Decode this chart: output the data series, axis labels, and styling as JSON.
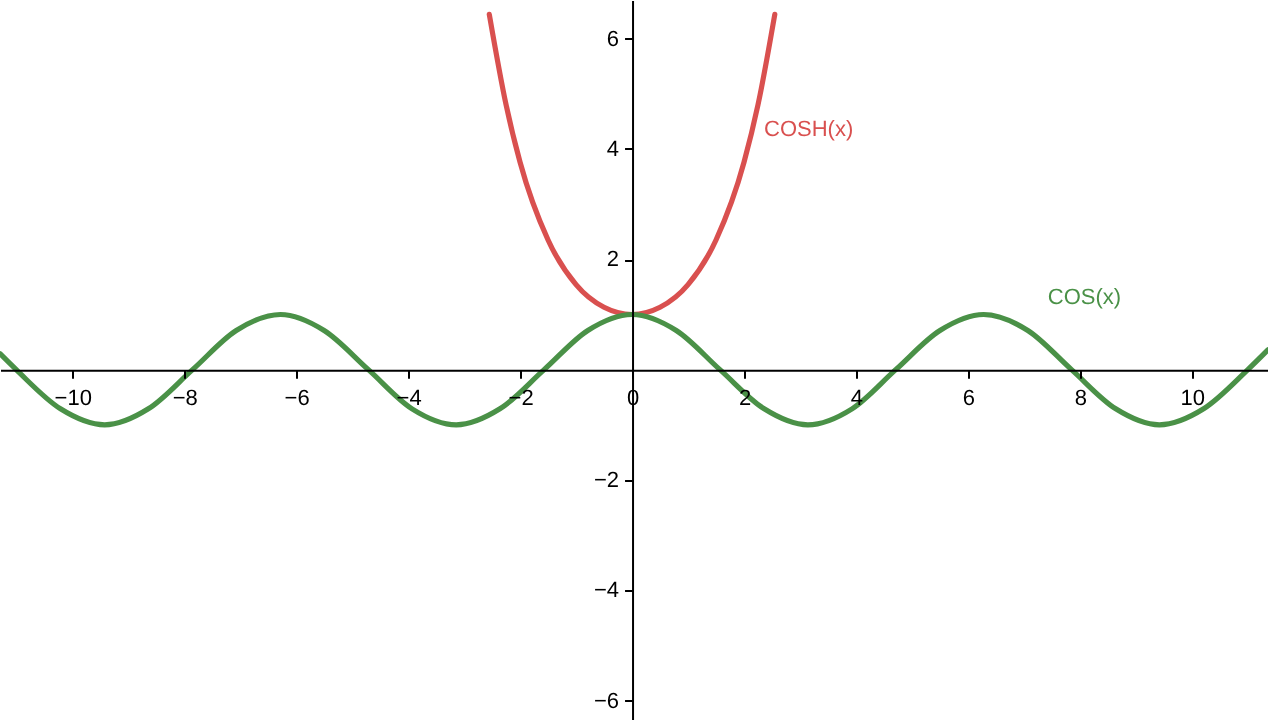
{
  "chart_data": {
    "type": "line",
    "xlim": [
      -11.29,
      11.36
    ],
    "ylim": [
      -6.35,
      6.7
    ],
    "xticks": [
      -10,
      -8,
      -6,
      -4,
      -2,
      0,
      2,
      4,
      6,
      8,
      10
    ],
    "yticks": [
      -6,
      -4,
      -2,
      2,
      4,
      6
    ],
    "series": [
      {
        "name": "COSH(x)",
        "color": "#d9504f",
        "x": [
          -2.55,
          -2.25,
          -2,
          -1.5,
          -1,
          -0.5,
          0,
          0.5,
          1,
          1.5,
          2,
          2.25,
          2.55
        ],
        "values": [
          6.44,
          4.8,
          3.76,
          2.35,
          1.54,
          1.13,
          1,
          1.13,
          1.54,
          2.35,
          3.76,
          4.8,
          6.44
        ]
      },
      {
        "name": "COS(x)",
        "color": "#4a9147",
        "x": [
          -11.29,
          -11.0,
          -10.21,
          -9.42,
          -8.64,
          -7.85,
          -7.07,
          -6.28,
          -5.5,
          -4.71,
          -3.93,
          -3.14,
          -2.36,
          -1.57,
          -0.79,
          0,
          0.79,
          1.57,
          2.36,
          3.14,
          3.93,
          4.71,
          5.5,
          6.28,
          7.07,
          7.85,
          8.64,
          9.42,
          10.21,
          11.0,
          11.36
        ],
        "values": [
          0.29,
          0.0,
          -0.71,
          -1,
          -0.71,
          0,
          0.71,
          1,
          0.71,
          0,
          -0.71,
          -1,
          -0.71,
          0,
          0.71,
          1,
          0.71,
          0,
          -0.71,
          -1,
          -0.71,
          0,
          0.71,
          1,
          0.71,
          0,
          -0.71,
          -1,
          -0.71,
          0,
          0.36
        ]
      }
    ]
  }
}
